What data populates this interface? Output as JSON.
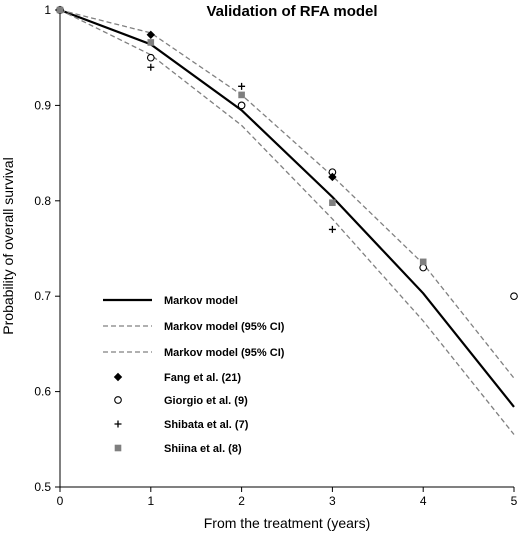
{
  "chart_data": {
    "type": "line",
    "title": "Validation of RFA model",
    "xlabel": "From the treatment (years)",
    "ylabel": "Probability of overall survival",
    "xlim": [
      0,
      5
    ],
    "ylim": [
      0.5,
      1
    ],
    "xticks": [
      "0",
      "1",
      "2",
      "3",
      "4",
      "5"
    ],
    "yticks": [
      "0.5",
      "0.6",
      "0.7",
      "0.8",
      "0.9",
      "1"
    ],
    "grid": false,
    "legend_position": "lower-left",
    "lines": [
      {
        "name": "Markov model",
        "style": "solid",
        "color": "#000000",
        "x": [
          0,
          1,
          2,
          3,
          4,
          5
        ],
        "y": [
          1.0,
          0.964,
          0.895,
          0.804,
          0.703,
          0.584
        ]
      },
      {
        "name": "Markov model (95% CI)",
        "style": "dashed",
        "color": "#808080",
        "x": [
          0,
          1,
          2,
          3,
          4,
          5
        ],
        "y": [
          1.0,
          0.976,
          0.911,
          0.826,
          0.734,
          0.614
        ]
      },
      {
        "name": "Markov model (95% CI)",
        "style": "dashed",
        "color": "#808080",
        "x": [
          0,
          1,
          2,
          3,
          4,
          5
        ],
        "y": [
          1.0,
          0.953,
          0.879,
          0.781,
          0.674,
          0.555
        ]
      }
    ],
    "points": [
      {
        "name": "Fang et al. (21)",
        "marker": "diamond",
        "color": "#000000",
        "x": [
          0,
          1,
          3
        ],
        "y": [
          1.0,
          0.974,
          0.825
        ]
      },
      {
        "name": "Giorgio et al. (9)",
        "marker": "circle-open",
        "color": "#000000",
        "x": [
          0,
          1,
          2,
          3,
          4,
          5
        ],
        "y": [
          1.0,
          0.95,
          0.9,
          0.83,
          0.73,
          0.7
        ]
      },
      {
        "name": "Shibata et al. (7)",
        "marker": "plus",
        "color": "#000000",
        "x": [
          0,
          1,
          2,
          3
        ],
        "y": [
          1.0,
          0.94,
          0.92,
          0.77
        ]
      },
      {
        "name": "Shiina et al. (8)",
        "marker": "square",
        "color": "#7f7f7f",
        "x": [
          0,
          1,
          2,
          3,
          4
        ],
        "y": [
          1.0,
          0.966,
          0.911,
          0.798,
          0.736
        ]
      }
    ]
  }
}
